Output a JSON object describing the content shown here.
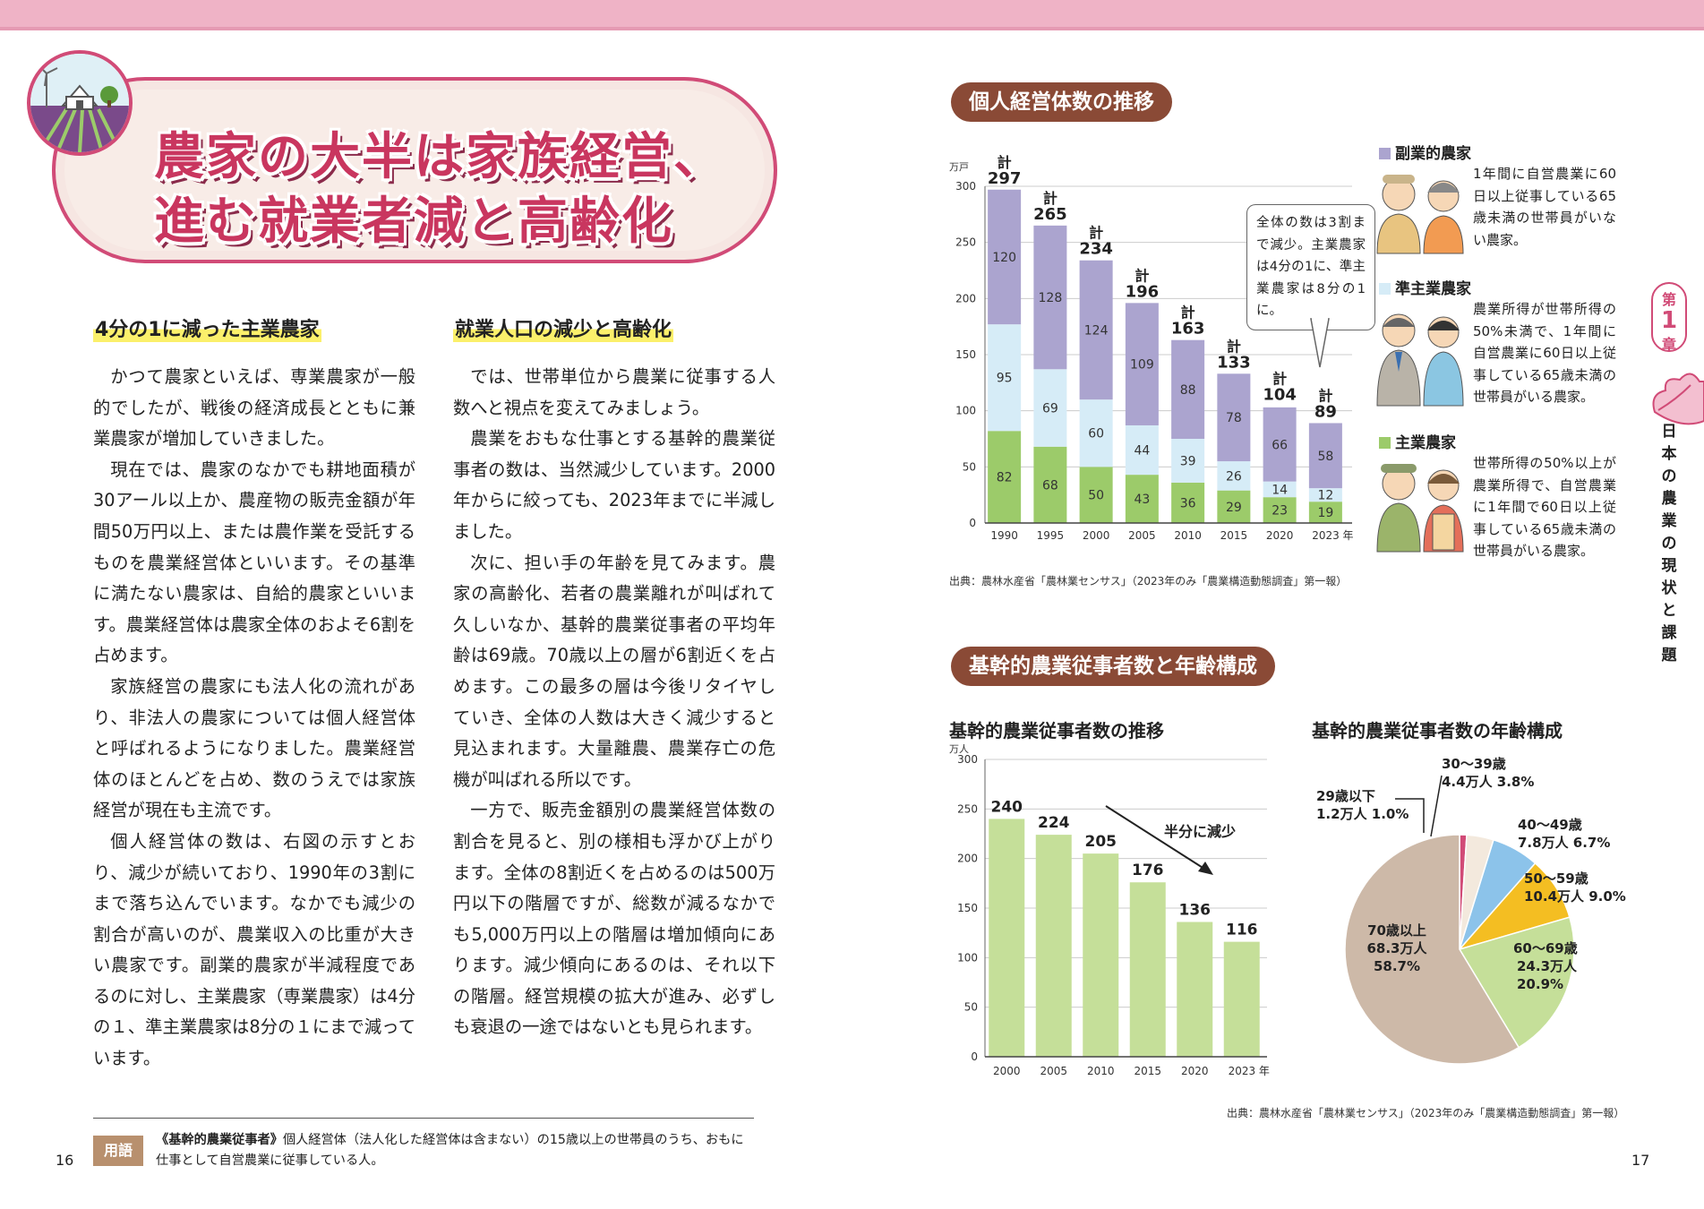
{
  "title": {
    "line1": "農家の大半は家族経営、",
    "line2": "進む就業者減と高齢化"
  },
  "left_column": {
    "heading": "4分の1に減った主業農家",
    "paragraphs": [
      "かつて農家といえば、専業農家が一般的でしたが、戦後の経済成長とともに兼業農家が増加していきました。",
      "現在では、農家のなかでも耕地面積が30アール以上か、農産物の販売金額が年間50万円以上、または農作業を受託するものを農業経営体といいます。その基準に満たない農家は、自給的農家といいます。農業経営体は農家全体のおよそ6割を占めます。",
      "家族経営の農家にも法人化の流れがあり、非法人の農家については個人経営体と呼ばれるようになりました。農業経営体のほとんどを占め、数のうえでは家族経営が現在も主流です。",
      "個人経営体の数は、右図の示すとおり、減少が続いており、1990年の3割にまで落ち込んでいます。なかでも減少の割合が高いのが、農業収入の比重が大きい農家です。副業的農家が半減程度であるのに対し、主業農家（専業農家）は4分の１、準主業農家は8分の１にまで減っています。"
    ]
  },
  "right_column": {
    "heading": "就業人口の減少と高齢化",
    "paragraphs": [
      "では、世帯単位から農業に従事する人数へと視点を変えてみましょう。",
      "農業をおもな仕事とする基幹的農業従事者の数は、当然減少しています。2000年からに絞っても、2023年までに半減しました。",
      "次に、担い手の年齢を見てみます。農家の高齢化、若者の農業離れが叫ばれて久しいなか、基幹的農業従事者の平均年齢は69歳。70歳以上の層が6割近くを占めます。この最多の層は今後リタイヤしていき、全体の人数は大きく減少すると見込まれます。大量離農、農業存亡の危機が叫ばれる所以です。",
      "一方で、販売金額別の農業経営体数の割合を見ると、別の様相も浮かび上がります。全体の8割近くを占めるのは500万円以下の階層ですが、総数が減るなかでも5,000万円以上の階層は増加傾向にあります。減少傾向にあるのは、それ以下の階層。経営規模の拡大が進み、必ずしも衰退の一途ではないとも見られます。"
    ]
  },
  "glossary": {
    "tag": "用語",
    "term": "《基幹的農業従事者》",
    "text": "個人経営体（法人化した経営体は含まない）の15歳以上の世帯員のうち、おもに仕事として自営農業に従事している人。"
  },
  "page_numbers": {
    "left": "16",
    "right": "17"
  },
  "side_tab": {
    "chapter_top": "第",
    "chapter_num": "1",
    "chapter_bottom": "章",
    "text": "日本の農業の現状と課題"
  },
  "section1": {
    "pill": "個人経営体数の推移",
    "source": "出典：農林水産省「農林業センサス」（2023年のみ「農業構造動態調査」第一報）",
    "callout": "全体の数は3割まで減少。主業農家は4分の1に、準主業農家は8分の1に。",
    "legend": [
      {
        "name": "副業的農家",
        "color": "#aba4cf",
        "desc": "1年間に自営農業に60日以上従事している65歳未満の世帯員がいない農家。"
      },
      {
        "name": "準主業農家",
        "color": "#d6ecf7",
        "desc": "農業所得が世帯所得の50%未満で、1年間に自営農業に60日以上従事している65歳未満の世帯員がいる農家。"
      },
      {
        "name": "主業農家",
        "color": "#9ccb6a",
        "desc": "世帯所得の50%以上が農業所得で、自営農業に1年間で60日以上従事している65歳未満の世帯員がいる農家。"
      }
    ]
  },
  "section2": {
    "pill": "基幹的農業従事者数と年齢構成",
    "source": "出典：農林水産省「農林業センサス」（2023年のみ「農業構造動態調査」第一報）"
  },
  "chart_data": [
    {
      "type": "bar",
      "stacked": true,
      "ylabel": "万戸",
      "ylim": [
        0,
        300
      ],
      "yticks": [
        0,
        50,
        100,
        150,
        200,
        250,
        300
      ],
      "categories": [
        "1990",
        "1995",
        "2000",
        "2005",
        "2010",
        "2015",
        "2020",
        "2023"
      ],
      "category_labels": [
        "1990",
        "1995",
        "2000",
        "2005",
        "2010",
        "2015",
        "2020",
        "2023 年"
      ],
      "series": [
        {
          "name": "主業農家",
          "color": "#9ccb6a",
          "values": [
            82,
            68,
            50,
            43,
            36,
            29,
            23,
            19
          ]
        },
        {
          "name": "準主業農家",
          "color": "#d6ecf7",
          "values": [
            95,
            69,
            60,
            44,
            39,
            26,
            14,
            12
          ]
        },
        {
          "name": "副業的農家",
          "color": "#aba4cf",
          "values": [
            120,
            128,
            124,
            109,
            88,
            78,
            66,
            58
          ]
        }
      ],
      "total_prefix": "計",
      "totals": [
        297,
        265,
        234,
        196,
        163,
        133,
        104,
        89
      ],
      "grid": true
    },
    {
      "type": "bar",
      "title": "基幹的農業従事者数の推移",
      "ylabel": "万人",
      "ylim": [
        0,
        300
      ],
      "yticks": [
        0,
        50,
        100,
        150,
        200,
        250,
        300
      ],
      "categories": [
        "2000",
        "2005",
        "2010",
        "2015",
        "2020",
        "2023"
      ],
      "category_labels": [
        "2000",
        "2005",
        "2010",
        "2015",
        "2020",
        "2023 年"
      ],
      "values": [
        240,
        224,
        205,
        176,
        136,
        116
      ],
      "color": "#c5df99",
      "annotation": "半分に減少",
      "grid": true
    },
    {
      "type": "pie",
      "title": "基幹的農業従事者数の年齢構成",
      "slices": [
        {
          "label": "29歳以下",
          "amount": "1.2",
          "unit": "万人",
          "percent": 1.0,
          "color": "#d14b77"
        },
        {
          "label": "30～39歳",
          "amount": "4.4",
          "unit": "万人",
          "percent": 3.8,
          "color": "#f3e9dd"
        },
        {
          "label": "40～49歳",
          "amount": "7.8",
          "unit": "万人",
          "percent": 6.7,
          "color": "#8cc3ea"
        },
        {
          "label": "50～59歳",
          "amount": "10.4",
          "unit": "万人",
          "percent": 9.0,
          "color": "#f4be22"
        },
        {
          "label": "60～69歳",
          "amount": "24.3",
          "unit": "万人",
          "percent": 20.9,
          "color": "#c5df99"
        },
        {
          "label": "70歳以上",
          "amount": "68.3",
          "unit": "万人",
          "percent": 58.7,
          "color": "#cdb9a8"
        }
      ]
    }
  ]
}
